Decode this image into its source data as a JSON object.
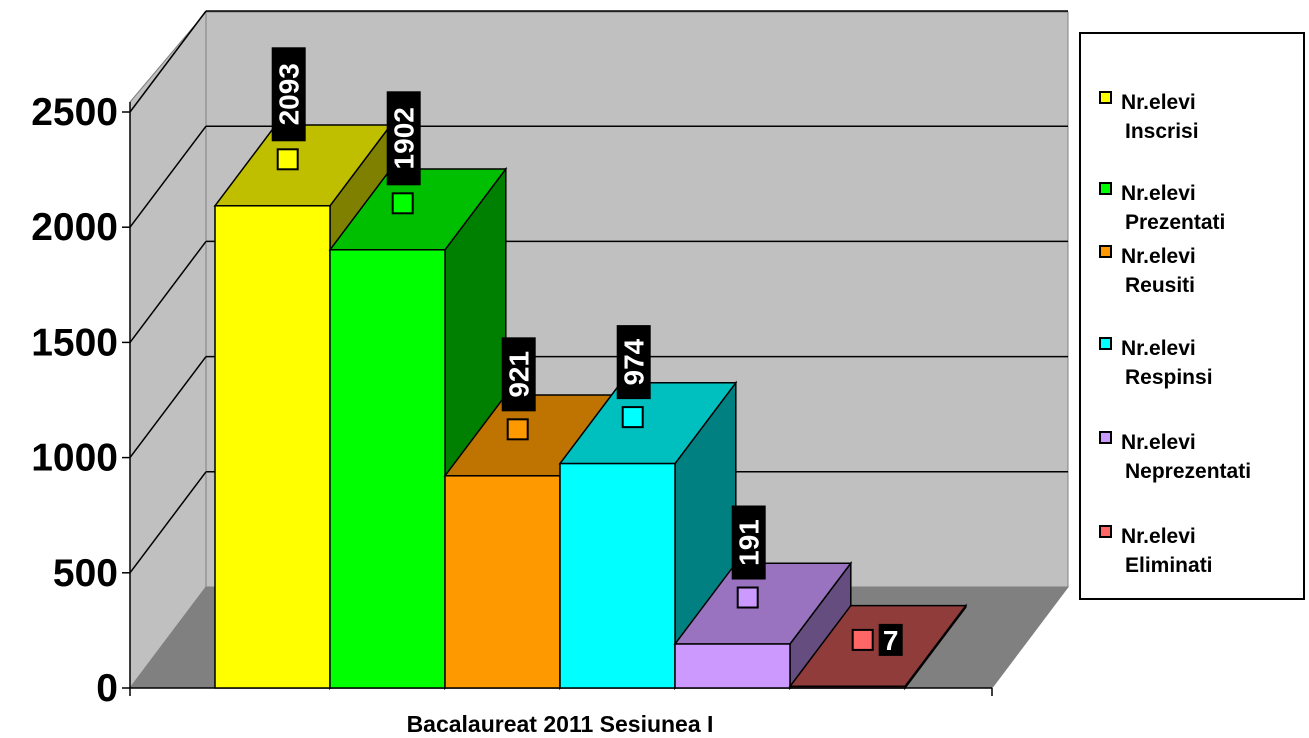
{
  "chart_data": {
    "type": "bar",
    "xlabel": "Bacalaureat 2011 Sesiunea I",
    "ylabel": "",
    "ylim": [
      0,
      2500
    ],
    "yticks": [
      0,
      500,
      1000,
      1500,
      2000,
      2500
    ],
    "grid": true,
    "legend_position": "right",
    "categories": [
      "Bacalaureat 2011 Sesiunea I"
    ],
    "series": [
      {
        "name": "Nr.elevi Inscrisi",
        "values": [
          2093
        ],
        "color": "#ffff00"
      },
      {
        "name": "Nr.elevi Prezentati",
        "values": [
          1902
        ],
        "color": "#00ff00"
      },
      {
        "name": "Nr.elevi Reusiti",
        "values": [
          921
        ],
        "color": "#ff9900"
      },
      {
        "name": "Nr.elevi Respinsi",
        "values": [
          974
        ],
        "color": "#00ffff"
      },
      {
        "name": "Nr.elevi Neprezentati",
        "values": [
          191
        ],
        "color": "#cc99ff"
      },
      {
        "name": "Nr.elevi Eliminati",
        "values": [
          7
        ],
        "color": "#c0504d"
      }
    ]
  },
  "legend": {
    "items": [
      {
        "line1": "Nr.elevi",
        "line2": "Inscrisi",
        "color": "#ffff00"
      },
      {
        "line1": "Nr.elevi",
        "line2": "Prezentati",
        "color": "#00ff00"
      },
      {
        "line1": "Nr.elevi",
        "line2": "Reusiti",
        "color": "#ff9900"
      },
      {
        "line1": "Nr.elevi",
        "line2": "Respinsi",
        "color": "#00ffff"
      },
      {
        "line1": "Nr.elevi",
        "line2": "Neprezentati",
        "color": "#cc99ff"
      },
      {
        "line1": "Nr.elevi",
        "line2": "Eliminati",
        "color": "#ff6666"
      }
    ]
  }
}
